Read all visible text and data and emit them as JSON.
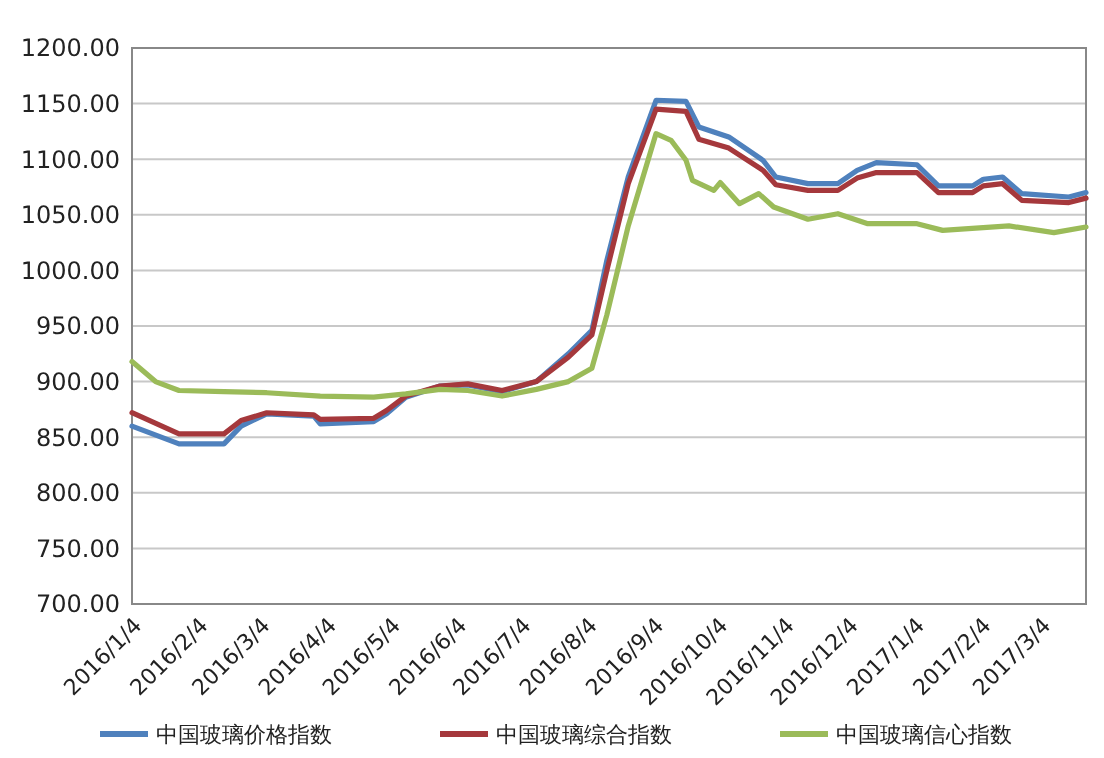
{
  "chart_data": {
    "type": "line",
    "xlim": [
      "2016-01-04",
      "2017-03-25"
    ],
    "xticks": [
      {
        "value": "2016-01-04",
        "label": "2016/1/4"
      },
      {
        "value": "2016-02-04",
        "label": "2016/2/4"
      },
      {
        "value": "2016-03-04",
        "label": "2016/3/4"
      },
      {
        "value": "2016-04-04",
        "label": "2016/4/4"
      },
      {
        "value": "2016-05-04",
        "label": "2016/5/4"
      },
      {
        "value": "2016-06-04",
        "label": "2016/6/4"
      },
      {
        "value": "2016-07-04",
        "label": "2016/7/4"
      },
      {
        "value": "2016-08-04",
        "label": "2016/8/4"
      },
      {
        "value": "2016-09-04",
        "label": "2016/9/4"
      },
      {
        "value": "2016-10-04",
        "label": "2016/10/4"
      },
      {
        "value": "2016-11-04",
        "label": "2016/11/4"
      },
      {
        "value": "2016-12-04",
        "label": "2016/12/4"
      },
      {
        "value": "2017-01-04",
        "label": "2017/1/4"
      },
      {
        "value": "2017-02-04",
        "label": "2017/2/4"
      },
      {
        "value": "2017-03-04",
        "label": "2017/3/4"
      }
    ],
    "ylim": [
      700,
      1200
    ],
    "yticks": [
      {
        "value": 700,
        "label": "700.00"
      },
      {
        "value": 750,
        "label": "750.00"
      },
      {
        "value": 800,
        "label": "800.00"
      },
      {
        "value": 850,
        "label": "850.00"
      },
      {
        "value": 900,
        "label": "900.00"
      },
      {
        "value": 950,
        "label": "950.00"
      },
      {
        "value": 1000,
        "label": "1000.00"
      },
      {
        "value": 1050,
        "label": "1050.00"
      },
      {
        "value": 1100,
        "label": "1100.00"
      },
      {
        "value": 1150,
        "label": "1150.00"
      },
      {
        "value": 1200,
        "label": "1200.00"
      }
    ],
    "grid": "y",
    "legend": "bottom",
    "marker": "none",
    "line_style": "solid",
    "series": [
      {
        "name": "中国玻璃价格指数",
        "color": "#4f81bd",
        "x": [
          "2016-01-04",
          "2016-01-26",
          "2016-02-16",
          "2016-02-24",
          "2016-03-07",
          "2016-03-29",
          "2016-04-01",
          "2016-04-26",
          "2016-05-02",
          "2016-05-11",
          "2016-05-27",
          "2016-06-09",
          "2016-06-25",
          "2016-07-11",
          "2016-07-26",
          "2016-08-06",
          "2016-08-13",
          "2016-08-23",
          "2016-09-05",
          "2016-09-19",
          "2016-09-25",
          "2016-10-09",
          "2016-10-25",
          "2016-10-31",
          "2016-11-15",
          "2016-11-29",
          "2016-12-08",
          "2016-12-17",
          "2017-01-05",
          "2017-01-15",
          "2017-01-31",
          "2017-02-05",
          "2017-02-14",
          "2017-02-23",
          "2017-03-17",
          "2017-03-25"
        ],
        "values": [
          860,
          844,
          844,
          860,
          871,
          869,
          862,
          864,
          871,
          886,
          896,
          897,
          891,
          900,
          925,
          946,
          1009,
          1084,
          1153,
          1152,
          1129,
          1120,
          1099,
          1084,
          1078,
          1078,
          1090,
          1097,
          1095,
          1076,
          1076,
          1082,
          1084,
          1069,
          1066,
          1070
        ]
      },
      {
        "name": "中国玻璃综合指数",
        "color": "#a5383c",
        "x": [
          "2016-01-04",
          "2016-01-26",
          "2016-02-16",
          "2016-02-24",
          "2016-03-07",
          "2016-03-29",
          "2016-04-01",
          "2016-04-26",
          "2016-05-02",
          "2016-05-11",
          "2016-05-27",
          "2016-06-09",
          "2016-06-25",
          "2016-07-11",
          "2016-07-26",
          "2016-08-06",
          "2016-08-13",
          "2016-08-23",
          "2016-09-05",
          "2016-09-19",
          "2016-09-25",
          "2016-10-09",
          "2016-10-25",
          "2016-10-31",
          "2016-11-15",
          "2016-11-29",
          "2016-12-08",
          "2016-12-17",
          "2017-01-05",
          "2017-01-15",
          "2017-01-31",
          "2017-02-05",
          "2017-02-14",
          "2017-02-23",
          "2017-03-17",
          "2017-03-25"
        ],
        "values": [
          872,
          853,
          853,
          865,
          872,
          870,
          866,
          867,
          874,
          887,
          896,
          898,
          892,
          900,
          922,
          942,
          1000,
          1078,
          1145,
          1143,
          1118,
          1110,
          1090,
          1077,
          1072,
          1072,
          1083,
          1088,
          1088,
          1070,
          1070,
          1076,
          1078,
          1063,
          1061,
          1065
        ]
      },
      {
        "name": "中国玻璃信心指数",
        "color": "#9bbb59",
        "x": [
          "2016-01-04",
          "2016-01-15",
          "2016-01-26",
          "2016-02-16",
          "2016-03-07",
          "2016-04-01",
          "2016-04-26",
          "2016-05-11",
          "2016-05-27",
          "2016-06-09",
          "2016-06-25",
          "2016-07-11",
          "2016-07-26",
          "2016-08-06",
          "2016-08-13",
          "2016-08-23",
          "2016-09-05",
          "2016-09-12",
          "2016-09-19",
          "2016-09-22",
          "2016-10-02",
          "2016-10-05",
          "2016-10-14",
          "2016-10-23",
          "2016-10-30",
          "2016-11-15",
          "2016-11-29",
          "2016-12-13",
          "2017-01-05",
          "2017-01-17",
          "2017-02-17",
          "2017-03-10",
          "2017-03-25"
        ],
        "values": [
          918,
          900,
          892,
          891,
          890,
          887,
          886,
          889,
          893,
          892,
          887,
          893,
          900,
          912,
          960,
          1040,
          1123,
          1117,
          1099,
          1081,
          1072,
          1079,
          1060,
          1069,
          1057,
          1046,
          1051,
          1042,
          1042,
          1036,
          1040,
          1034,
          1039
        ]
      }
    ]
  }
}
